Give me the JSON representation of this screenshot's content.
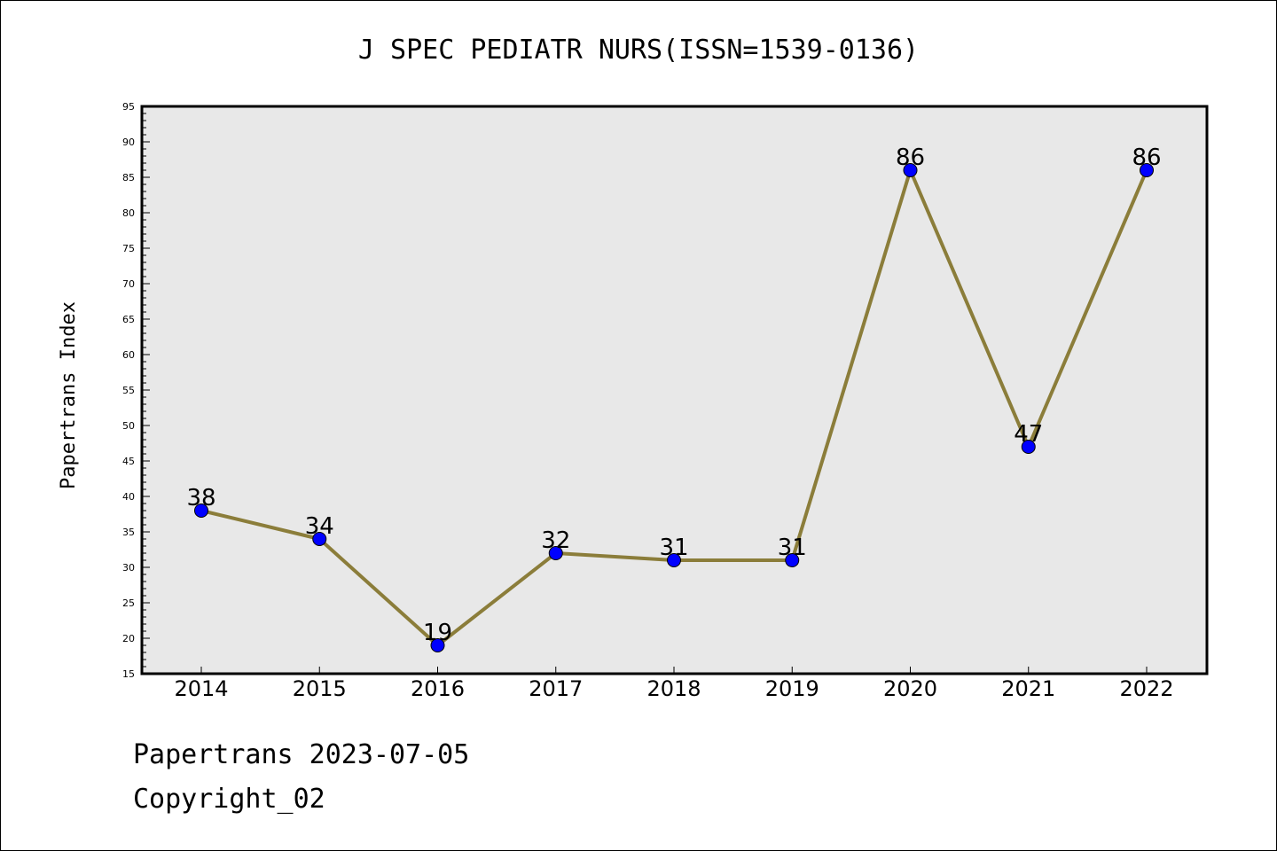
{
  "chart_data": {
    "type": "line",
    "title": "J SPEC PEDIATR NURS(ISSN=1539-0136)",
    "xlabel": "",
    "ylabel": "Papertrans Index",
    "categories": [
      "2014",
      "2015",
      "2016",
      "2017",
      "2018",
      "2019",
      "2020",
      "2021",
      "2022"
    ],
    "values": [
      38,
      34,
      19,
      32,
      31,
      31,
      86,
      47,
      86
    ],
    "ylim": [
      15,
      95
    ],
    "yticks": [
      15,
      20,
      25,
      30,
      35,
      40,
      45,
      50,
      55,
      60,
      65,
      70,
      75,
      80,
      85,
      90,
      95
    ],
    "grid": false,
    "line_color": "#8b7d3a",
    "marker_color": "#0000ff",
    "plot_background": "#e8e8e8"
  },
  "footer": {
    "line1": "Papertrans 2023-07-05",
    "line2": "Copyright_02"
  }
}
